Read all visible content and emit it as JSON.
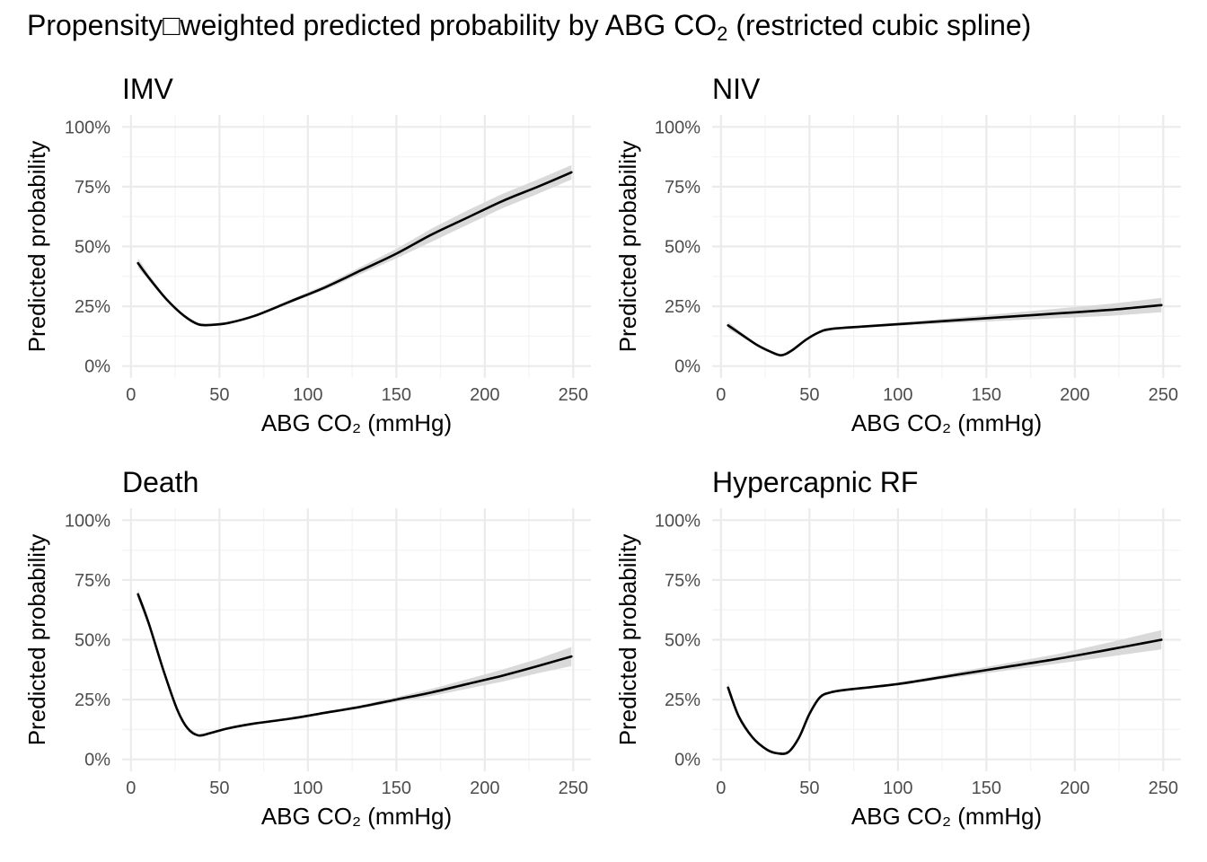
{
  "title": {
    "prefix": "Propensity□weighted predicted probability by ABG CO",
    "subscript": "2",
    "suffix": " (restricted cubic spline)"
  },
  "colors": {
    "line": "#000000",
    "ribbon": "#d9d9d9",
    "grid_major": "#ebebeb",
    "grid_minor": "#f4f4f4",
    "tick_text": "#4d4d4d"
  },
  "chart_data": [
    {
      "type": "line",
      "title": "IMV",
      "xlabel": "ABG CO₂ (mmHg)",
      "ylabel": "Predicted probability",
      "xlim": [
        -5,
        260
      ],
      "ylim": [
        0,
        1
      ],
      "x_ticks": [
        "0",
        "50",
        "100",
        "150",
        "200",
        "250"
      ],
      "y_ticks": [
        "0%",
        "25%",
        "50%",
        "75%",
        "100%"
      ],
      "grid": true,
      "series": [
        {
          "x": [
            4,
            10,
            20,
            30,
            38,
            45,
            55,
            70,
            90,
            110,
            130,
            150,
            170,
            190,
            210,
            230,
            249
          ],
          "y": [
            0.43,
            0.37,
            0.28,
            0.21,
            0.175,
            0.172,
            0.18,
            0.21,
            0.27,
            0.33,
            0.4,
            0.47,
            0.55,
            0.62,
            0.69,
            0.75,
            0.81
          ],
          "lower": [
            0.41,
            0.36,
            0.275,
            0.205,
            0.17,
            0.167,
            0.176,
            0.205,
            0.262,
            0.32,
            0.385,
            0.45,
            0.52,
            0.59,
            0.66,
            0.72,
            0.78
          ],
          "upper": [
            0.45,
            0.385,
            0.285,
            0.215,
            0.18,
            0.177,
            0.184,
            0.215,
            0.278,
            0.34,
            0.415,
            0.49,
            0.575,
            0.65,
            0.72,
            0.78,
            0.84
          ]
        }
      ]
    },
    {
      "type": "line",
      "title": "NIV",
      "xlabel": "ABG CO₂ (mmHg)",
      "ylabel": "Predicted probability",
      "xlim": [
        -5,
        260
      ],
      "ylim": [
        0,
        1
      ],
      "x_ticks": [
        "0",
        "50",
        "100",
        "150",
        "200",
        "250"
      ],
      "y_ticks": [
        "0%",
        "25%",
        "50%",
        "75%",
        "100%"
      ],
      "grid": true,
      "series": [
        {
          "x": [
            4,
            10,
            20,
            28,
            34,
            40,
            48,
            55,
            62,
            80,
            100,
            130,
            160,
            190,
            220,
            249
          ],
          "y": [
            0.17,
            0.14,
            0.09,
            0.06,
            0.045,
            0.065,
            0.11,
            0.14,
            0.155,
            0.165,
            0.175,
            0.19,
            0.205,
            0.22,
            0.235,
            0.255
          ],
          "lower": [
            0.155,
            0.13,
            0.085,
            0.055,
            0.04,
            0.06,
            0.105,
            0.135,
            0.15,
            0.16,
            0.168,
            0.18,
            0.19,
            0.2,
            0.21,
            0.225
          ],
          "upper": [
            0.185,
            0.15,
            0.095,
            0.065,
            0.05,
            0.07,
            0.115,
            0.145,
            0.16,
            0.17,
            0.182,
            0.2,
            0.22,
            0.24,
            0.26,
            0.285
          ]
        }
      ]
    },
    {
      "type": "line",
      "title": "Death",
      "xlabel": "ABG CO₂ (mmHg)",
      "ylabel": "Predicted probability",
      "xlim": [
        -5,
        260
      ],
      "ylim": [
        0,
        1
      ],
      "x_ticks": [
        "0",
        "50",
        "100",
        "150",
        "200",
        "250"
      ],
      "y_ticks": [
        "0%",
        "25%",
        "50%",
        "75%",
        "100%"
      ],
      "grid": true,
      "series": [
        {
          "x": [
            4,
            10,
            18,
            26,
            32,
            38,
            45,
            55,
            70,
            90,
            110,
            130,
            150,
            170,
            190,
            210,
            230,
            249
          ],
          "y": [
            0.69,
            0.57,
            0.38,
            0.21,
            0.13,
            0.1,
            0.11,
            0.13,
            0.15,
            0.17,
            0.195,
            0.22,
            0.25,
            0.28,
            0.315,
            0.35,
            0.39,
            0.43
          ],
          "lower": [
            0.67,
            0.555,
            0.37,
            0.205,
            0.125,
            0.095,
            0.105,
            0.125,
            0.145,
            0.165,
            0.19,
            0.213,
            0.24,
            0.265,
            0.295,
            0.325,
            0.36,
            0.39
          ],
          "upper": [
            0.71,
            0.585,
            0.39,
            0.215,
            0.135,
            0.105,
            0.115,
            0.135,
            0.155,
            0.175,
            0.2,
            0.227,
            0.26,
            0.295,
            0.335,
            0.375,
            0.42,
            0.47
          ]
        }
      ]
    },
    {
      "type": "line",
      "title": "Hypercapnic RF",
      "xlabel": "ABG CO₂ (mmHg)",
      "ylabel": "Predicted probability",
      "xlim": [
        -5,
        260
      ],
      "ylim": [
        0,
        1
      ],
      "x_ticks": [
        "0",
        "50",
        "100",
        "150",
        "200",
        "250"
      ],
      "y_ticks": [
        "0%",
        "25%",
        "50%",
        "75%",
        "100%"
      ],
      "grid": true,
      "series": [
        {
          "x": [
            4,
            10,
            18,
            26,
            32,
            38,
            44,
            50,
            56,
            62,
            70,
            100,
            130,
            160,
            190,
            220,
            249
          ],
          "y": [
            0.3,
            0.18,
            0.09,
            0.04,
            0.025,
            0.03,
            0.09,
            0.19,
            0.26,
            0.28,
            0.29,
            0.315,
            0.35,
            0.385,
            0.42,
            0.46,
            0.5
          ],
          "lower": [
            0.28,
            0.17,
            0.085,
            0.035,
            0.02,
            0.025,
            0.085,
            0.185,
            0.255,
            0.275,
            0.285,
            0.31,
            0.34,
            0.37,
            0.4,
            0.43,
            0.46
          ],
          "upper": [
            0.32,
            0.19,
            0.095,
            0.045,
            0.03,
            0.035,
            0.095,
            0.195,
            0.265,
            0.285,
            0.295,
            0.32,
            0.36,
            0.4,
            0.44,
            0.49,
            0.54
          ]
        }
      ]
    }
  ]
}
